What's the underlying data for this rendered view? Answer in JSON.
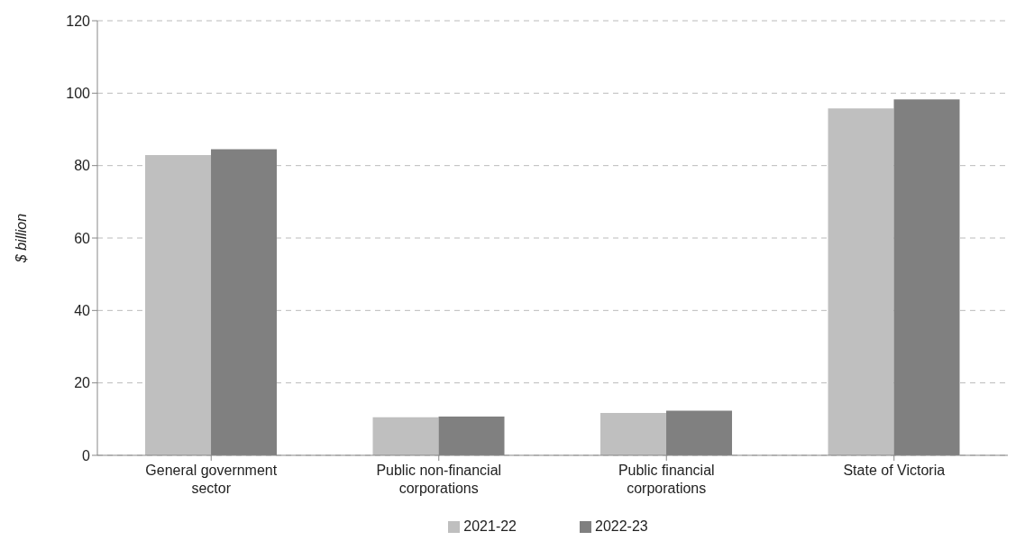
{
  "chart_data": {
    "type": "bar",
    "ylabel": "$ billion",
    "categories": [
      "General government sector",
      "Public non-financial corporations",
      "Public financial corporations",
      "State of Victoria"
    ],
    "series": [
      {
        "name": "2021-22",
        "color": "#bfbfbf",
        "values": [
          82.9,
          10.5,
          11.7,
          95.8
        ]
      },
      {
        "name": "2022-23",
        "color": "#808080",
        "values": [
          84.5,
          10.7,
          12.3,
          98.3
        ]
      }
    ],
    "ylim": [
      0,
      120
    ],
    "yticks": [
      0,
      20,
      40,
      60,
      80,
      100,
      120
    ],
    "grid": "y",
    "legend": "bottom"
  }
}
